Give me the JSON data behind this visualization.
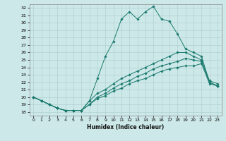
{
  "xlabel": "Humidex (Indice chaleur)",
  "xlim": [
    -0.5,
    23.5
  ],
  "ylim": [
    17.5,
    32.5
  ],
  "xticks": [
    0,
    1,
    2,
    3,
    4,
    5,
    6,
    7,
    8,
    9,
    10,
    11,
    12,
    13,
    14,
    15,
    16,
    17,
    18,
    19,
    20,
    21,
    22,
    23
  ],
  "yticks": [
    18,
    19,
    20,
    21,
    22,
    23,
    24,
    25,
    26,
    27,
    28,
    29,
    30,
    31,
    32
  ],
  "bg_color": "#cde8e8",
  "line_color": "#1a7a6e",
  "grid_color": "#aacccc",
  "series": [
    [
      20.0,
      19.5,
      19.0,
      18.5,
      18.2,
      18.2,
      18.2,
      19.5,
      22.5,
      25.5,
      27.5,
      30.5,
      31.5,
      30.5,
      31.5,
      32.2,
      30.5,
      30.2,
      28.5,
      26.5,
      26.0,
      25.5,
      22.0,
      21.5
    ],
    [
      20.0,
      19.5,
      19.0,
      18.5,
      18.2,
      18.2,
      18.2,
      19.5,
      20.5,
      21.0,
      21.8,
      22.5,
      23.0,
      23.5,
      24.0,
      24.5,
      25.0,
      25.5,
      26.0,
      26.0,
      25.5,
      25.0,
      22.2,
      21.8
    ],
    [
      20.0,
      19.5,
      19.0,
      18.5,
      18.2,
      18.2,
      18.2,
      19.0,
      20.0,
      20.5,
      21.2,
      21.8,
      22.2,
      22.8,
      23.2,
      23.8,
      24.2,
      24.5,
      24.8,
      25.2,
      25.0,
      24.8,
      22.0,
      21.5
    ],
    [
      20.0,
      19.5,
      19.0,
      18.5,
      18.2,
      18.2,
      18.2,
      19.0,
      19.8,
      20.2,
      20.8,
      21.2,
      21.8,
      22.2,
      22.5,
      23.0,
      23.5,
      23.8,
      24.0,
      24.2,
      24.2,
      24.5,
      21.8,
      21.5
    ]
  ],
  "marker_series": [
    0,
    1,
    2
  ],
  "no_marker_series": [
    3
  ]
}
